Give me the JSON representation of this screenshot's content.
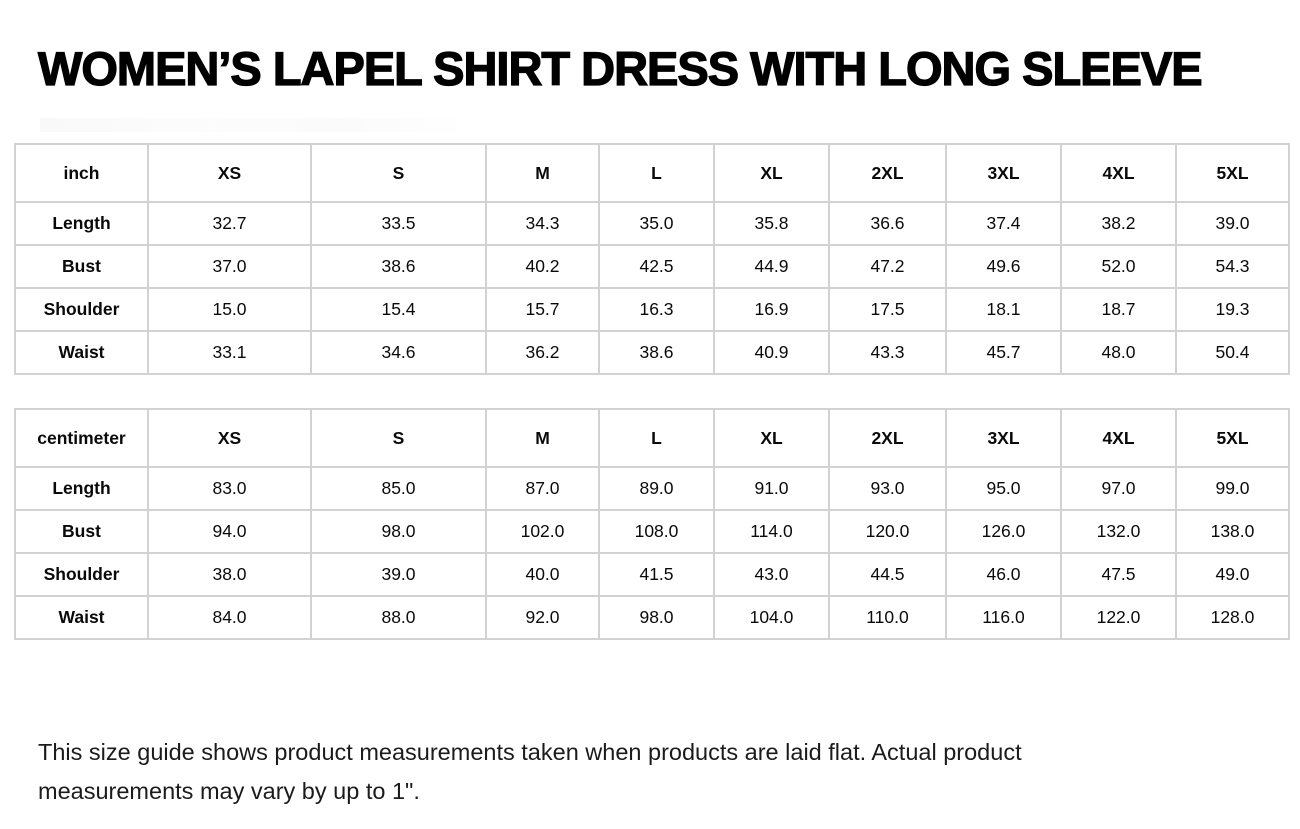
{
  "title": "WOMEN’S LAPEL SHIRT DRESS WITH LONG SLEEVE",
  "tables": [
    {
      "unit_label": "inch",
      "sizes": [
        "XS",
        "S",
        "M",
        "L",
        "XL",
        "2XL",
        "3XL",
        "4XL",
        "5XL"
      ],
      "rows": [
        {
          "label": "Length",
          "values": [
            "32.7",
            "33.5",
            "34.3",
            "35.0",
            "35.8",
            "36.6",
            "37.4",
            "38.2",
            "39.0"
          ]
        },
        {
          "label": "Bust",
          "values": [
            "37.0",
            "38.6",
            "40.2",
            "42.5",
            "44.9",
            "47.2",
            "49.6",
            "52.0",
            "54.3"
          ]
        },
        {
          "label": "Shoulder",
          "values": [
            "15.0",
            "15.4",
            "15.7",
            "16.3",
            "16.9",
            "17.5",
            "18.1",
            "18.7",
            "19.3"
          ]
        },
        {
          "label": "Waist",
          "values": [
            "33.1",
            "34.6",
            "36.2",
            "38.6",
            "40.9",
            "43.3",
            "45.7",
            "48.0",
            "50.4"
          ]
        }
      ]
    },
    {
      "unit_label": "centimeter",
      "sizes": [
        "XS",
        "S",
        "M",
        "L",
        "XL",
        "2XL",
        "3XL",
        "4XL",
        "5XL"
      ],
      "rows": [
        {
          "label": "Length",
          "values": [
            "83.0",
            "85.0",
            "87.0",
            "89.0",
            "91.0",
            "93.0",
            "95.0",
            "97.0",
            "99.0"
          ]
        },
        {
          "label": "Bust",
          "values": [
            "94.0",
            "98.0",
            "102.0",
            "108.0",
            "114.0",
            "120.0",
            "126.0",
            "132.0",
            "138.0"
          ]
        },
        {
          "label": "Shoulder",
          "values": [
            "38.0",
            "39.0",
            "40.0",
            "41.5",
            "43.0",
            "44.5",
            "46.0",
            "47.5",
            "49.0"
          ]
        },
        {
          "label": "Waist",
          "values": [
            "84.0",
            "88.0",
            "92.0",
            "98.0",
            "104.0",
            "110.0",
            "116.0",
            "122.0",
            "128.0"
          ]
        }
      ]
    }
  ],
  "footnote": "This size guide shows product measurements taken when products are laid flat. Actual product measurements may vary by up to 1\"."
}
